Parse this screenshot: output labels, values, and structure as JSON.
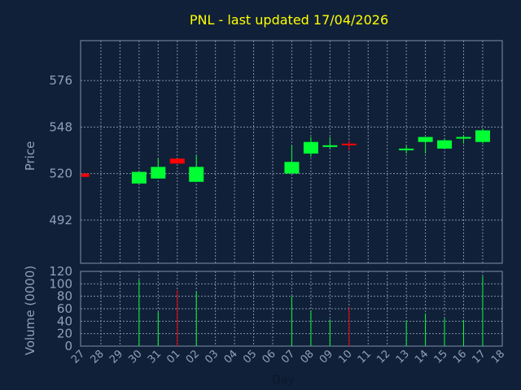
{
  "chart_data": {
    "type": "candlestick",
    "title": "PNL - last updated 17/04/2026",
    "xlabel": "Day",
    "price_panel": {
      "ylabel": "Price",
      "yticks": [
        492,
        520,
        548,
        576
      ],
      "ylim": [
        466,
        600
      ]
    },
    "volume_panel": {
      "ylabel": "Volume (0000)",
      "yticks": [
        0,
        20,
        40,
        60,
        80,
        100,
        120
      ],
      "ylim": [
        0,
        120
      ]
    },
    "x_labels": [
      "27",
      "28",
      "29",
      "30",
      "31",
      "01",
      "02",
      "03",
      "04",
      "05",
      "06",
      "07",
      "08",
      "09",
      "10",
      "11",
      "12",
      "13",
      "14",
      "15",
      "16",
      "17",
      "18"
    ],
    "candles": [
      {
        "day": "27",
        "open": 520,
        "close": 518,
        "high": 520,
        "low": 518,
        "volume": 0
      },
      {
        "day": "30",
        "open": 514,
        "close": 521,
        "high": 521,
        "low": 514,
        "volume": 107
      },
      {
        "day": "31",
        "open": 517,
        "close": 524,
        "high": 529,
        "low": 517,
        "volume": 55
      },
      {
        "day": "01",
        "open": 529,
        "close": 526,
        "high": 529,
        "low": 526,
        "volume": 90
      },
      {
        "day": "02",
        "open": 515,
        "close": 524,
        "high": 531,
        "low": 515,
        "volume": 88
      },
      {
        "day": "07",
        "open": 520,
        "close": 527,
        "high": 537,
        "low": 520,
        "volume": 80
      },
      {
        "day": "08",
        "open": 532,
        "close": 539,
        "high": 542,
        "low": 530,
        "volume": 57
      },
      {
        "day": "09",
        "open": 536,
        "close": 537,
        "high": 542,
        "low": 535,
        "volume": 43
      },
      {
        "day": "10",
        "open": 538,
        "close": 537,
        "high": 540,
        "low": 534,
        "volume": 62
      },
      {
        "day": "13",
        "open": 535,
        "close": 535,
        "high": 537,
        "low": 532,
        "volume": 41
      },
      {
        "day": "14",
        "open": 539,
        "close": 542,
        "high": 542,
        "low": 532,
        "volume": 52
      },
      {
        "day": "15",
        "open": 535,
        "close": 540,
        "high": 541,
        "low": 535,
        "volume": 45
      },
      {
        "day": "16",
        "open": 541,
        "close": 542,
        "high": 543,
        "low": 538,
        "volume": 42
      },
      {
        "day": "17",
        "open": 539,
        "close": 546,
        "high": 547,
        "low": 538,
        "volume": 112
      }
    ],
    "colors": {
      "background": "#102039",
      "plot_border": "#8090a8",
      "grid": "#8090a8",
      "title": "#ffff00",
      "axis_text": "#8ea0ba",
      "up": "#00ff33",
      "down": "#ff0000"
    },
    "grid": true
  }
}
